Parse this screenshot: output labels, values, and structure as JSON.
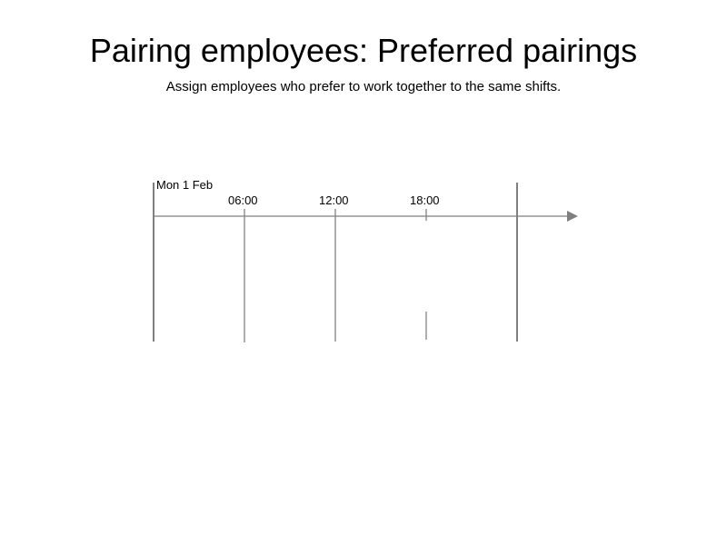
{
  "header": {
    "title": "Pairing employees: Preferred pairings",
    "subtitle": "Assign employees who prefer to work together to the same shifts."
  },
  "timeline": {
    "day_label": "Mon 1 Feb",
    "ticks": [
      "06:00",
      "12:00",
      "18:00"
    ]
  },
  "colors": {
    "axis": "#7f7f7f",
    "day_boundary": "#555555",
    "hour_line": "#777777"
  }
}
